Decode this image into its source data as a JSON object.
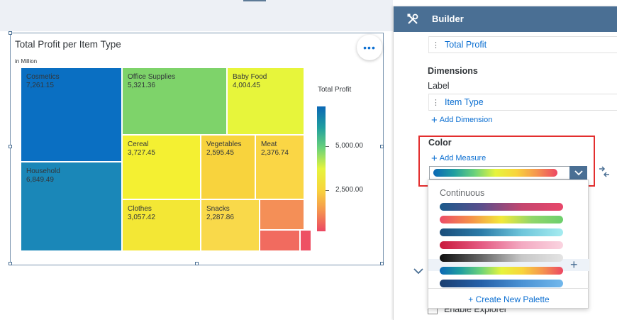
{
  "widget": {
    "title": "Total Profit per Item Type",
    "subtitle": "in Million",
    "more_icon": "more-horizontal-icon"
  },
  "chart_data": {
    "type": "treemap",
    "title": "Total Profit per Item Type",
    "subtitle": "in Million",
    "items": [
      {
        "label": "Cosmetics",
        "value": "7,261.15",
        "color": "#0a6fc2"
      },
      {
        "label": "Household",
        "value": "6,849.49",
        "color": "#1a87b8"
      },
      {
        "label": "Office Supplies",
        "value": "5,321.36",
        "color": "#7ed36a"
      },
      {
        "label": "Baby Food",
        "value": "4,004.45",
        "color": "#e7f53b"
      },
      {
        "label": "Cereal",
        "value": "3,727.45",
        "color": "#f4f032"
      },
      {
        "label": "Clothes",
        "value": "3,057.42",
        "color": "#f3e735"
      },
      {
        "label": "Vegetables",
        "value": "2,595.45",
        "color": "#f8d33d"
      },
      {
        "label": "Meat",
        "value": "2,376.74",
        "color": "#fad645"
      },
      {
        "label": "Snacks",
        "value": "2,287.86",
        "color": "#f9d94a"
      },
      {
        "label": "",
        "value": "",
        "color": "#f48f57"
      },
      {
        "label": "",
        "value": "",
        "color": "#f16b5f"
      },
      {
        "label": "",
        "value": "",
        "color": "#ee5064"
      }
    ],
    "legend": {
      "title": "Total Profit",
      "ticks": [
        "5,000.00",
        "2,500.00"
      ],
      "gradient": [
        "#0b67b5",
        "#1f9ea0",
        "#6bd27a",
        "#e6f43d",
        "#f8d53c",
        "#f5954f",
        "#ec4763"
      ]
    }
  },
  "builder": {
    "title": "Builder",
    "tools_icon": "tools-icon",
    "measure_token": "Total Profit",
    "dimensions_label": "Dimensions",
    "label_label": "Label",
    "dimension_token": "Item Type",
    "add_dimension": "Add Dimension",
    "color_label": "Color",
    "add_measure": "Add Measure",
    "enable_explorer": "Enable Explorer"
  },
  "palette_dropdown": {
    "section": "Continuous",
    "create_new": "+ Create New Palette",
    "palettes": [
      [
        "#1b5a8c",
        "#5a4f8c",
        "#c4466f",
        "#e8476a"
      ],
      [
        "#ec4b67",
        "#f59049",
        "#f2e93a",
        "#8fd66a",
        "#6dcf6c"
      ],
      [
        "#1a4d7a",
        "#2b7ba8",
        "#6ec6db",
        "#a6ecf0"
      ],
      [
        "#c91a3c",
        "#e45a82",
        "#f3aac2",
        "#fad4e0"
      ],
      [
        "#0e0e0e",
        "#666666",
        "#c8c8c8",
        "#e4e4e4"
      ],
      [
        "#0b67b5",
        "#1f9ea0",
        "#6bd27a",
        "#e6f43d",
        "#f8d53c",
        "#f5954f",
        "#ec4763"
      ],
      [
        "#1a3e70",
        "#2560a8",
        "#4a92d4",
        "#72b8ec"
      ]
    ]
  }
}
